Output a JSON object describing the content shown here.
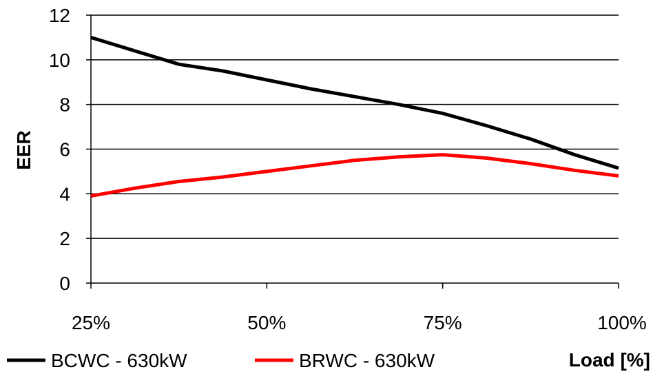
{
  "chart_data": {
    "type": "line",
    "title": "",
    "xlabel": "Load [%]",
    "ylabel": "EER",
    "x": [
      25,
      31.25,
      37.5,
      43.75,
      50,
      56.25,
      62.5,
      68.75,
      75,
      81.25,
      87.5,
      93.75,
      100
    ],
    "xlim": [
      25,
      100
    ],
    "ylim": [
      0,
      12
    ],
    "xticks": [
      25,
      50,
      75,
      100
    ],
    "xtick_labels": [
      "25%",
      "50%",
      "75%",
      "100%"
    ],
    "yticks": [
      0,
      2,
      4,
      6,
      8,
      10,
      12
    ],
    "ytick_labels": [
      "0",
      "2",
      "4",
      "6",
      "8",
      "10",
      "12"
    ],
    "grid": "horizontal",
    "legend_position": "bottom-left",
    "series": [
      {
        "name": "BCWC - 630kW",
        "color": "#000000",
        "values": [
          11.0,
          10.4,
          9.8,
          9.5,
          9.1,
          8.7,
          8.35,
          8.0,
          7.6,
          7.05,
          6.45,
          5.75,
          5.15
        ]
      },
      {
        "name": "BRWC - 630kW",
        "color": "#ff0000",
        "values": [
          3.9,
          4.25,
          4.55,
          4.75,
          5.0,
          5.25,
          5.5,
          5.65,
          5.75,
          5.6,
          5.35,
          5.05,
          4.8
        ]
      }
    ]
  }
}
